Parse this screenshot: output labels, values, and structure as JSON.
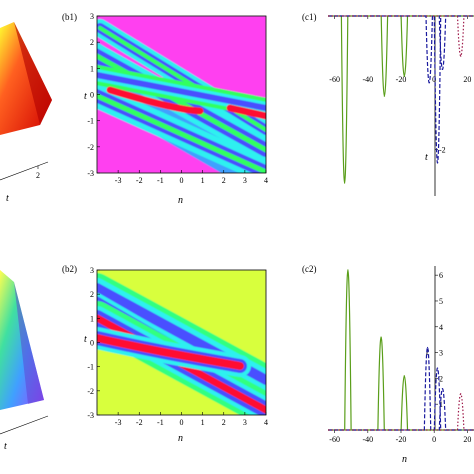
{
  "chart_data": [
    {
      "type": "surface3d",
      "panel": "a1",
      "xlabel": "t",
      "tick_labels": [
        "2"
      ],
      "colors": [
        "#ffff00",
        "#ff3020",
        "#e00000"
      ]
    },
    {
      "type": "heatmap",
      "panel": "b1",
      "label": "(b1)",
      "xlabel": "n",
      "ylabel": "t",
      "xlim": [
        -4,
        4
      ],
      "ylim": [
        -3,
        3
      ],
      "xticks": [
        -3,
        -2,
        -1,
        0,
        1,
        2,
        3,
        4
      ],
      "yticks": [
        -3,
        -2,
        -1,
        0,
        1,
        2,
        3
      ],
      "background": "#ff3df0",
      "colors": [
        "#ff3df0",
        "#2ef0f0",
        "#4040ff",
        "#30ff60",
        "#ff1030"
      ]
    },
    {
      "type": "line",
      "panel": "c1",
      "label": "(c1)",
      "xlabel": "n",
      "ylabel": "t",
      "xticks": [
        -60,
        -40,
        -20,
        0,
        20
      ],
      "yticks": [
        -2
      ],
      "series": [
        {
          "color": "#5a9e1a",
          "style": "solid",
          "peaks": [
            {
              "x": -54,
              "y": -2.5
            },
            {
              "x": -30,
              "y": -1.2
            },
            {
              "x": -18,
              "y": -0.9
            }
          ]
        },
        {
          "color": "#1a1a9e",
          "style": "dashed",
          "peaks": [
            {
              "x": -3,
              "y": -1.0
            },
            {
              "x": 2,
              "y": -2.2
            },
            {
              "x": 5,
              "y": -0.8
            }
          ]
        },
        {
          "color": "#9e1a4a",
          "style": "dotted",
          "peaks": [
            {
              "x": 16,
              "y": -0.6
            }
          ]
        }
      ]
    },
    {
      "type": "surface3d",
      "panel": "a2",
      "xlabel": "t",
      "colors": [
        "#ffff40",
        "#40c0ff",
        "#8040ff"
      ]
    },
    {
      "type": "heatmap",
      "panel": "b2",
      "label": "(b2)",
      "xlabel": "n",
      "ylabel": "t",
      "xlim": [
        -4,
        4
      ],
      "ylim": [
        -3,
        3
      ],
      "xticks": [
        -3,
        -2,
        -1,
        0,
        1,
        2,
        3,
        4
      ],
      "yticks": [
        -3,
        -2,
        -1,
        0,
        1,
        2,
        3
      ],
      "background": "#d6ff3a",
      "colors": [
        "#d6ff3a",
        "#2ef0f0",
        "#4040ff",
        "#ff1030"
      ]
    },
    {
      "type": "line",
      "panel": "c2",
      "label": "(c2)",
      "xlabel": "n",
      "ylabel": "t",
      "xticks": [
        -60,
        -40,
        -20,
        0,
        20
      ],
      "yticks": [
        6,
        5,
        4,
        3,
        2,
        1
      ],
      "series": [
        {
          "color": "#5a9e1a",
          "style": "solid",
          "peaks": [
            {
              "x": -52,
              "y": 6.2
            },
            {
              "x": -32,
              "y": 3.6
            },
            {
              "x": -18,
              "y": 2.1
            }
          ]
        },
        {
          "color": "#1a1a9e",
          "style": "dashed",
          "peaks": [
            {
              "x": -4,
              "y": 3.2
            },
            {
              "x": 2,
              "y": 2.4
            },
            {
              "x": 5,
              "y": 1.6
            }
          ]
        },
        {
          "color": "#9e1a4a",
          "style": "dotted",
          "peaks": [
            {
              "x": 16,
              "y": 1.4
            }
          ]
        }
      ]
    }
  ]
}
